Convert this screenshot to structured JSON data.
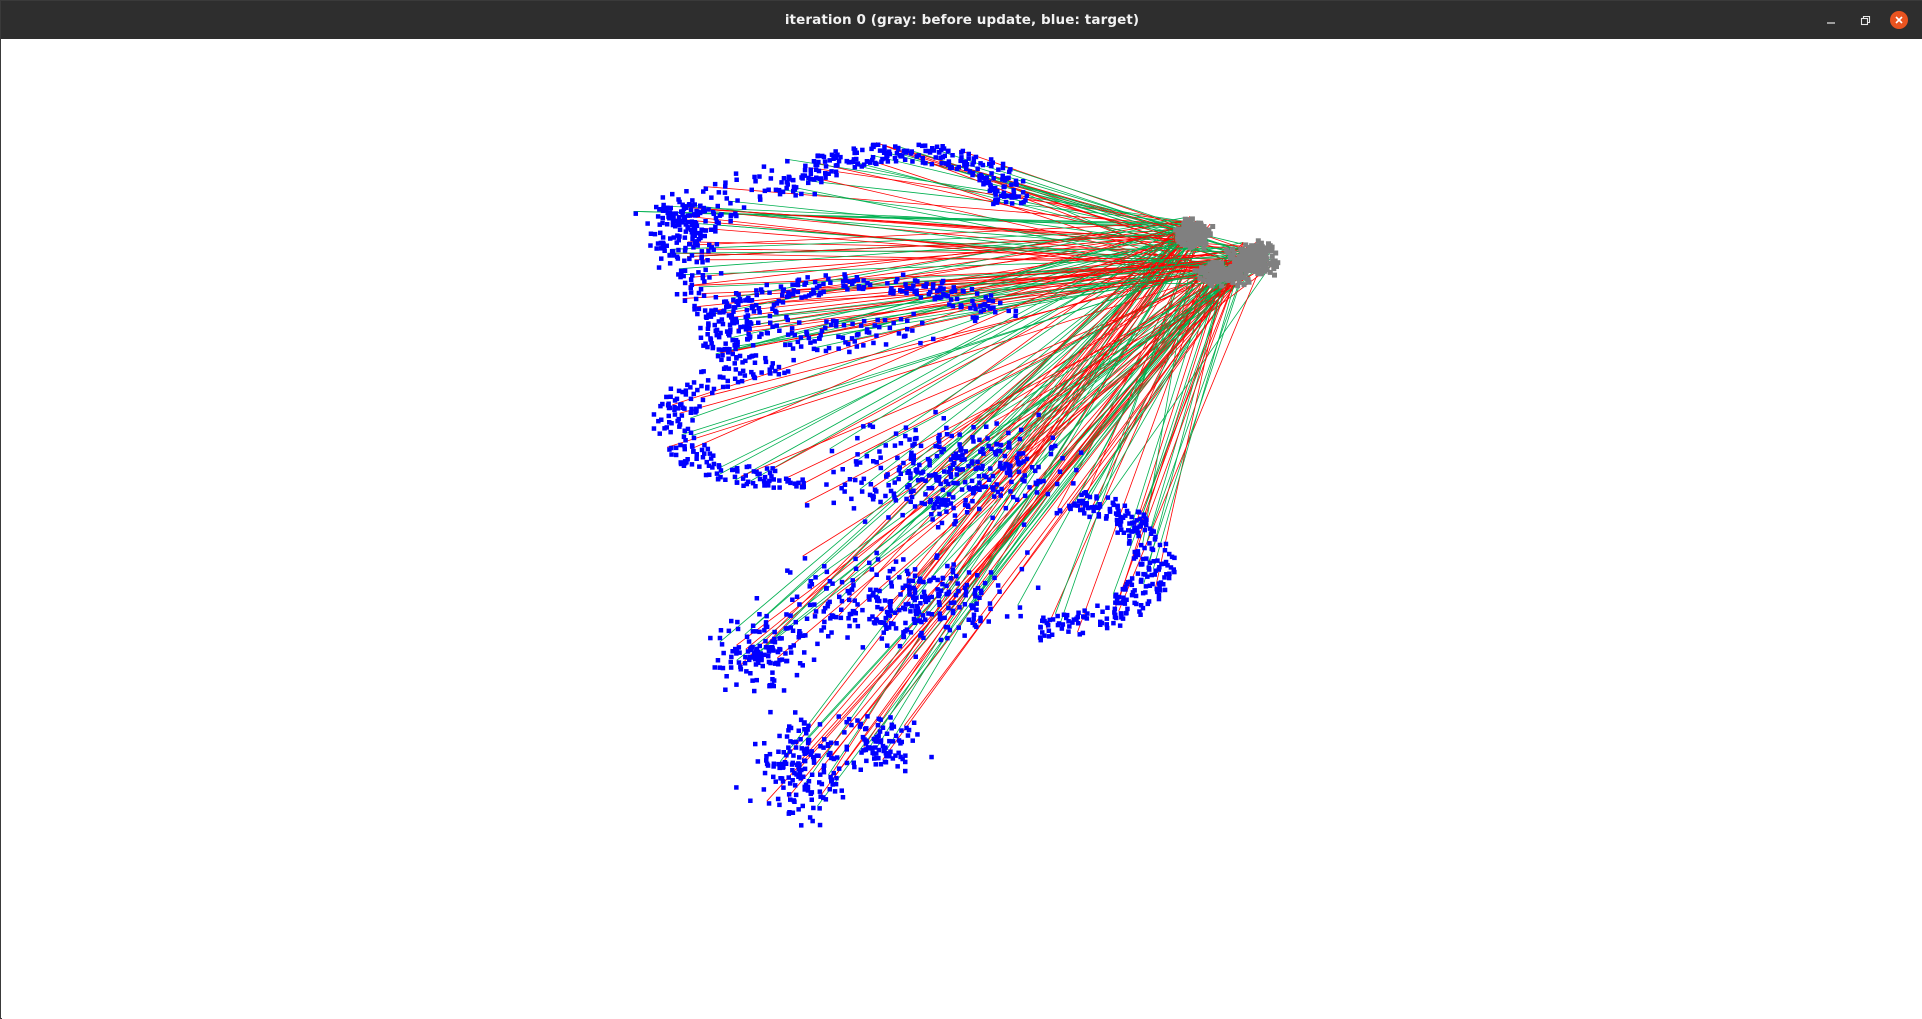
{
  "window": {
    "title": "iteration 0 (gray: before update, blue: target)"
  },
  "controls": {
    "minimize_icon": "minimize-icon",
    "maximize_icon": "restore-icon",
    "close_icon": "close-icon"
  },
  "colors": {
    "source": "#808080",
    "target": "#0000ff",
    "correspondence_a": "#ff0000",
    "correspondence_b": "#00b050",
    "titlebar": "#2e2e2e",
    "close_button": "#e95420"
  }
}
